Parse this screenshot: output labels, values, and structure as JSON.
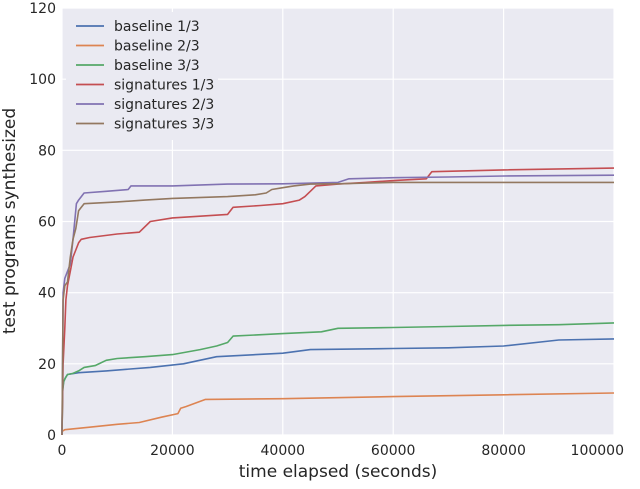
{
  "chart_data": {
    "type": "line",
    "title": "",
    "xlabel": "time elapsed (seconds)",
    "ylabel": "test programs synthesized",
    "xlim": [
      0,
      100000
    ],
    "ylim": [
      0,
      120
    ],
    "xticks": [
      0,
      20000,
      40000,
      60000,
      80000,
      100000
    ],
    "yticks": [
      0,
      20,
      40,
      60,
      80,
      100,
      120
    ],
    "xtick_labels": [
      "0",
      "20000",
      "40000",
      "60000",
      "80000",
      "100000"
    ],
    "ytick_labels": [
      "0",
      "20",
      "40",
      "60",
      "80",
      "100",
      "120"
    ],
    "grid": true,
    "legend_position": "top-left",
    "colors": {
      "background": "#eaeaf2",
      "grid": "#ffffff"
    },
    "series": [
      {
        "name": "baseline 1/3",
        "color": "#4c72b0",
        "points": [
          [
            0,
            0
          ],
          [
            100,
            13
          ],
          [
            300,
            15
          ],
          [
            600,
            16
          ],
          [
            1000,
            17
          ],
          [
            3000,
            17.5
          ],
          [
            8000,
            18
          ],
          [
            16000,
            19
          ],
          [
            22000,
            20
          ],
          [
            28000,
            22
          ],
          [
            40000,
            23
          ],
          [
            45000,
            24
          ],
          [
            60000,
            24.3
          ],
          [
            70000,
            24.5
          ],
          [
            80000,
            25
          ],
          [
            90000,
            26.7
          ],
          [
            100000,
            27
          ]
        ]
      },
      {
        "name": "baseline 2/3",
        "color": "#dd8452",
        "points": [
          [
            0,
            1
          ],
          [
            500,
            1.5
          ],
          [
            5000,
            2.2
          ],
          [
            10000,
            3
          ],
          [
            14000,
            3.5
          ],
          [
            18000,
            5
          ],
          [
            21000,
            6
          ],
          [
            21500,
            7.5
          ],
          [
            22500,
            8
          ],
          [
            26000,
            10
          ],
          [
            40000,
            10.2
          ],
          [
            60000,
            10.8
          ],
          [
            80000,
            11.3
          ],
          [
            100000,
            11.8
          ]
        ]
      },
      {
        "name": "baseline 3/3",
        "color": "#55a868",
        "points": [
          [
            0,
            0
          ],
          [
            100,
            12
          ],
          [
            300,
            15
          ],
          [
            600,
            16
          ],
          [
            1000,
            17
          ],
          [
            2000,
            17.3
          ],
          [
            3000,
            18
          ],
          [
            4000,
            19
          ],
          [
            6000,
            19.5
          ],
          [
            8000,
            21
          ],
          [
            10000,
            21.5
          ],
          [
            15000,
            22
          ],
          [
            20000,
            22.6
          ],
          [
            25000,
            24
          ],
          [
            28000,
            25
          ],
          [
            30000,
            26
          ],
          [
            31000,
            27.8
          ],
          [
            40000,
            28.5
          ],
          [
            47000,
            29
          ],
          [
            50000,
            30
          ],
          [
            60000,
            30.2
          ],
          [
            70000,
            30.5
          ],
          [
            80000,
            30.8
          ],
          [
            90000,
            31
          ],
          [
            100000,
            31.5
          ]
        ]
      },
      {
        "name": "signatures 1/3",
        "color": "#c44e52",
        "points": [
          [
            0,
            0
          ],
          [
            200,
            20
          ],
          [
            500,
            30
          ],
          [
            700,
            38
          ],
          [
            1000,
            42
          ],
          [
            1500,
            46
          ],
          [
            2000,
            50
          ],
          [
            2500,
            52
          ],
          [
            3000,
            54
          ],
          [
            3500,
            55
          ],
          [
            5000,
            55.5
          ],
          [
            10000,
            56.5
          ],
          [
            14000,
            57
          ],
          [
            16000,
            60
          ],
          [
            20000,
            61
          ],
          [
            25000,
            61.5
          ],
          [
            30000,
            62
          ],
          [
            31000,
            64
          ],
          [
            36000,
            64.5
          ],
          [
            40000,
            65
          ],
          [
            43000,
            66
          ],
          [
            44000,
            67
          ],
          [
            46000,
            70
          ],
          [
            50000,
            70.5
          ],
          [
            55000,
            71
          ],
          [
            60000,
            71.5
          ],
          [
            66000,
            72
          ],
          [
            67000,
            74
          ],
          [
            80000,
            74.5
          ],
          [
            100000,
            75
          ]
        ]
      },
      {
        "name": "signatures 2/3",
        "color": "#8172b2",
        "points": [
          [
            0,
            0
          ],
          [
            200,
            40
          ],
          [
            500,
            44
          ],
          [
            1000,
            46
          ],
          [
            1500,
            48
          ],
          [
            2000,
            55
          ],
          [
            2300,
            60
          ],
          [
            2600,
            65
          ],
          [
            3000,
            66
          ],
          [
            3500,
            67
          ],
          [
            4000,
            68
          ],
          [
            8000,
            68.5
          ],
          [
            12000,
            69
          ],
          [
            12500,
            70
          ],
          [
            20000,
            70
          ],
          [
            30000,
            70.5
          ],
          [
            40000,
            70.6
          ],
          [
            50000,
            71
          ],
          [
            52000,
            72
          ],
          [
            60000,
            72.3
          ],
          [
            70000,
            72.5
          ],
          [
            80000,
            72.8
          ],
          [
            100000,
            73
          ]
        ]
      },
      {
        "name": "signatures 3/3",
        "color": "#937860",
        "points": [
          [
            0,
            0
          ],
          [
            200,
            38
          ],
          [
            500,
            42
          ],
          [
            1000,
            43
          ],
          [
            1500,
            50
          ],
          [
            2000,
            55
          ],
          [
            2500,
            58
          ],
          [
            3000,
            63
          ],
          [
            3500,
            64
          ],
          [
            4000,
            65
          ],
          [
            10000,
            65.5
          ],
          [
            15000,
            66
          ],
          [
            20000,
            66.5
          ],
          [
            30000,
            67
          ],
          [
            35000,
            67.5
          ],
          [
            37000,
            68
          ],
          [
            38000,
            69
          ],
          [
            40000,
            69.5
          ],
          [
            42000,
            70
          ],
          [
            45000,
            70.5
          ],
          [
            50000,
            70.6
          ],
          [
            55000,
            70.8
          ],
          [
            60000,
            71
          ],
          [
            100000,
            71
          ]
        ]
      }
    ]
  }
}
